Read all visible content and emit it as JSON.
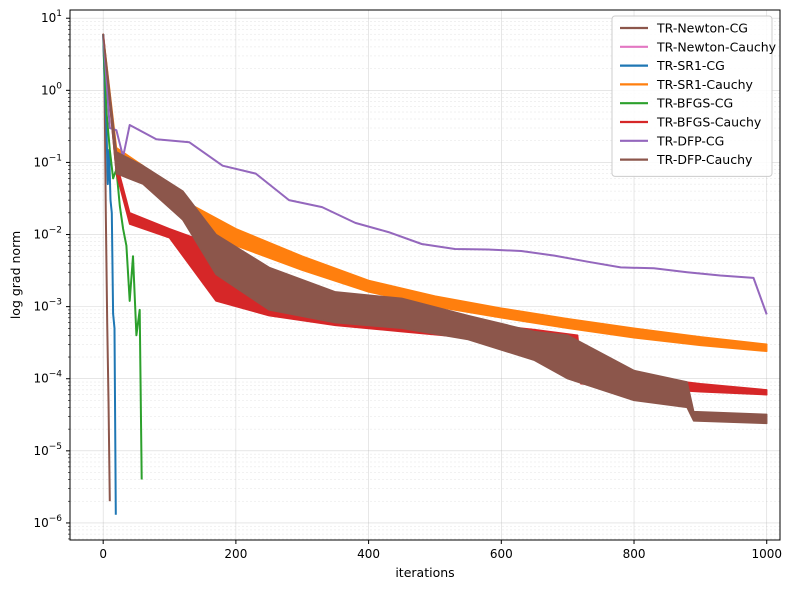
{
  "chart_data": {
    "type": "line",
    "title": "",
    "xlabel": "iterations",
    "ylabel": "log grad norm",
    "xscale": "linear",
    "yscale": "log",
    "xlim": [
      -50,
      1020
    ],
    "ylim": [
      5.8e-07,
      13
    ],
    "x_ticks": [
      0,
      200,
      400,
      600,
      800,
      1000
    ],
    "x_tick_labels": [
      "0",
      "200",
      "400",
      "600",
      "800",
      "1000"
    ],
    "y_ticks": [
      1e-06,
      1e-05,
      0.0001,
      0.001,
      0.01,
      0.1,
      1,
      10
    ],
    "y_tick_labels": [
      {
        "base": "10",
        "exp": "−6"
      },
      {
        "base": "10",
        "exp": "−5"
      },
      {
        "base": "10",
        "exp": "−4"
      },
      {
        "base": "10",
        "exp": "−3"
      },
      {
        "base": "10",
        "exp": "−2"
      },
      {
        "base": "10",
        "exp": "−1"
      },
      {
        "base": "10",
        "exp": "0"
      },
      {
        "base": "10",
        "exp": "1"
      }
    ],
    "grid": true,
    "legend_position": "top-right",
    "series": [
      {
        "name": "TR-Newton-CG",
        "color": "#8c564b",
        "style": "line",
        "x": [
          0,
          2,
          4,
          6,
          8,
          10
        ],
        "y": [
          6.0,
          1.5,
          0.02,
          0.0006,
          5e-05,
          2e-06
        ]
      },
      {
        "name": "TR-Newton-Cauchy",
        "color": "#e377c2",
        "style": "line",
        "x": [
          0,
          2
        ],
        "y": [
          6.0,
          4.0
        ]
      },
      {
        "name": "TR-SR1-CG",
        "color": "#1f77b4",
        "style": "line",
        "x": [
          0,
          3,
          5,
          7,
          9,
          11,
          13,
          15,
          17,
          19
        ],
        "y": [
          6.0,
          0.8,
          0.3,
          0.05,
          0.15,
          0.03,
          0.02,
          0.0008,
          0.0005,
          1.3e-06
        ]
      },
      {
        "name": "TR-SR1-Cauchy",
        "color": "#ff7f0e",
        "style": "band",
        "x": [
          0,
          20,
          60,
          120,
          200,
          300,
          400,
          500,
          600,
          700,
          800,
          900,
          1000
        ],
        "upper": [
          6.0,
          0.16,
          0.09,
          0.03,
          0.012,
          0.005,
          0.0023,
          0.0014,
          0.00095,
          0.00068,
          0.0005,
          0.00038,
          0.0003
        ],
        "lower": [
          6.0,
          0.1,
          0.06,
          0.016,
          0.007,
          0.0032,
          0.0016,
          0.001,
          0.0007,
          0.0005,
          0.00037,
          0.00029,
          0.00024
        ]
      },
      {
        "name": "TR-BFGS-CG",
        "color": "#2ca02c",
        "style": "line",
        "x": [
          0,
          5,
          10,
          15,
          20,
          25,
          30,
          35,
          40,
          45,
          50,
          55,
          58
        ],
        "y": [
          6.0,
          0.5,
          0.15,
          0.06,
          0.08,
          0.025,
          0.012,
          0.007,
          0.0012,
          0.005,
          0.0004,
          0.0009,
          4e-06
        ]
      },
      {
        "name": "TR-BFGS-Cauchy",
        "color": "#d62728",
        "style": "band",
        "x": [
          0,
          20,
          40,
          100,
          170,
          250,
          350,
          450,
          550,
          650,
          715,
          720,
          800,
          900,
          1000
        ],
        "upper": [
          6.0,
          0.1,
          0.02,
          0.012,
          0.007,
          0.002,
          0.0013,
          0.0009,
          0.0006,
          0.00048,
          0.0004,
          0.00014,
          0.00011,
          8.5e-05,
          7e-05
        ],
        "lower": [
          6.0,
          0.07,
          0.014,
          0.009,
          0.0012,
          0.00075,
          0.00055,
          0.00045,
          0.00037,
          0.00032,
          0.00028,
          8.5e-05,
          7.5e-05,
          6.6e-05,
          6e-05
        ]
      },
      {
        "name": "TR-DFP-CG",
        "color": "#9467bd",
        "style": "line",
        "x": [
          0,
          10,
          20,
          30,
          40,
          80,
          130,
          180,
          230,
          280,
          330,
          380,
          430,
          480,
          530,
          580,
          630,
          680,
          730,
          780,
          830,
          880,
          930,
          980,
          1000
        ],
        "y": [
          6.0,
          0.3,
          0.28,
          0.12,
          0.33,
          0.21,
          0.19,
          0.09,
          0.07,
          0.03,
          0.024,
          0.0145,
          0.0108,
          0.0074,
          0.0063,
          0.0062,
          0.0059,
          0.0051,
          0.0042,
          0.0035,
          0.0034,
          0.003,
          0.0027,
          0.0025,
          0.00078
        ]
      },
      {
        "name": "TR-DFP-Cauchy",
        "color": "#8c564b",
        "style": "band",
        "x": [
          0,
          20,
          60,
          120,
          170,
          250,
          350,
          450,
          550,
          650,
          700,
          800,
          880,
          890,
          1000
        ],
        "upper": [
          6.0,
          0.14,
          0.09,
          0.04,
          0.01,
          0.0035,
          0.0016,
          0.0013,
          0.00075,
          0.00045,
          0.0004,
          0.00013,
          9e-05,
          3.5e-05,
          3.2e-05
        ],
        "lower": [
          6.0,
          0.07,
          0.05,
          0.016,
          0.0028,
          0.0009,
          0.0006,
          0.0005,
          0.00035,
          0.00018,
          0.0001,
          5e-05,
          4e-05,
          2.6e-05,
          2.4e-05
        ]
      }
    ]
  }
}
